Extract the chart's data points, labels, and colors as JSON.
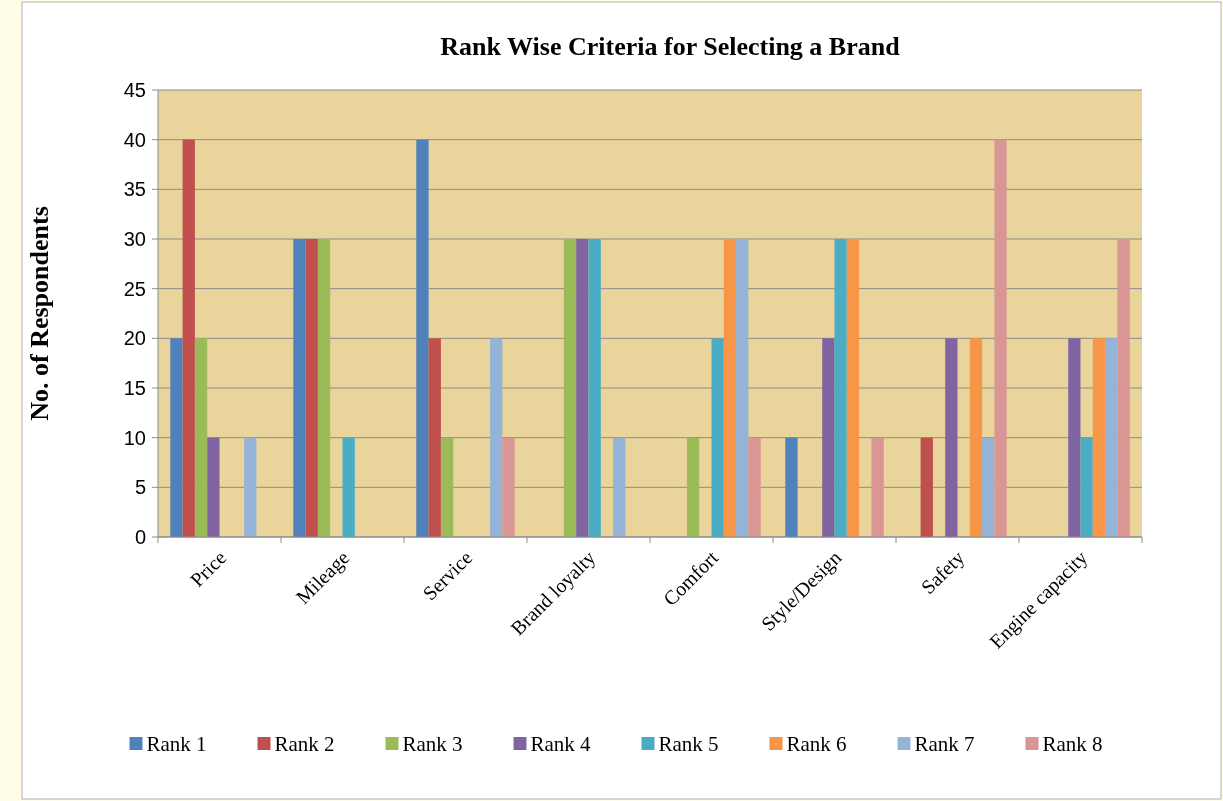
{
  "chart_data": {
    "type": "bar",
    "title": "Rank Wise Criteria for Selecting a Brand",
    "ylabel": "No. of Respondents",
    "categories": [
      "Price",
      "Mileage",
      "Service",
      "Brand loyalty",
      "Comfort",
      "Style/Design",
      "Safety",
      "Engine capacity"
    ],
    "series": [
      {
        "name": "Rank 1",
        "color": "#4f81bd",
        "values": [
          20,
          30,
          40,
          0,
          0,
          10,
          0,
          0
        ]
      },
      {
        "name": "Rank 2",
        "color": "#c0504d",
        "values": [
          40,
          30,
          20,
          0,
          0,
          0,
          10,
          0
        ]
      },
      {
        "name": "Rank 3",
        "color": "#9bbb59",
        "values": [
          20,
          30,
          10,
          30,
          10,
          0,
          0,
          0
        ]
      },
      {
        "name": "Rank 4",
        "color": "#8064a2",
        "values": [
          10,
          0,
          0,
          30,
          0,
          20,
          20,
          20
        ]
      },
      {
        "name": "Rank 5",
        "color": "#4bacc6",
        "values": [
          0,
          10,
          0,
          30,
          20,
          30,
          0,
          10
        ]
      },
      {
        "name": "Rank 6",
        "color": "#f79646",
        "values": [
          0,
          0,
          0,
          0,
          30,
          30,
          20,
          20
        ]
      },
      {
        "name": "Rank 7",
        "color": "#95b3d7",
        "values": [
          10,
          0,
          20,
          10,
          30,
          0,
          10,
          20
        ]
      },
      {
        "name": "Rank 8",
        "color": "#d99694",
        "values": [
          0,
          0,
          10,
          0,
          10,
          10,
          40,
          30
        ]
      }
    ],
    "ylim": [
      0,
      45
    ],
    "yticks": [
      0,
      5,
      10,
      15,
      20,
      25,
      30,
      35,
      40,
      45
    ],
    "grid": "y",
    "legend": "bottom"
  }
}
